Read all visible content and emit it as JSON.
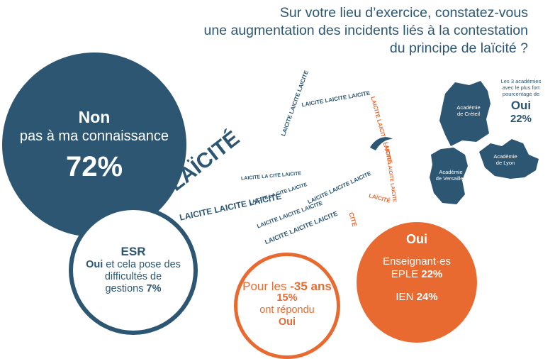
{
  "title": {
    "line1": "Sur votre lieu d’exercice, constatez-vous",
    "line2": "une augmentation des incidents liés à la contestation",
    "line3": "du principe de laïcité ?"
  },
  "chart_data": {
    "type": "bubble-infographic",
    "question": "Sur votre lieu d’exercice, constatez-vous une augmentation des incidents liés à la contestation du principe de laïcité ?",
    "non": {
      "head": "Non",
      "sub": "pas à ma connaissance",
      "value_label": "72%",
      "value": 72
    },
    "esr": {
      "head": "ESR",
      "oui": "Oui",
      "text1": "et cela pose des",
      "text2": "difficultés de",
      "text3": "gestions",
      "value_label": "7%",
      "value": 7
    },
    "jeunes": {
      "prefix": "Pour les",
      "group": "-35 ans",
      "value_label": "15%",
      "value": 15,
      "text": "ont répondu",
      "answer": "Oui"
    },
    "oui": {
      "head": "Oui",
      "enseignants_label": "Enseignant·es",
      "eple_label": "EPLE",
      "eple_value_label": "22%",
      "eple_value": 22,
      "ien_label": "IEN",
      "ien_value_label": "24%",
      "ien_value": 24
    },
    "map": {
      "info1": "Les 3 académies",
      "info2": "avec le plus fort",
      "info3": "pourcentage de",
      "oui": "Oui",
      "value_label": "22%",
      "value": 22,
      "academies": [
        {
          "name1": "Académie",
          "name2": "de Créteil"
        },
        {
          "name1": "Académie",
          "name2": "de Versailles"
        },
        {
          "name1": "Académie",
          "name2": "de Lyon"
        }
      ]
    }
  },
  "decor": {
    "laicite_big": "LAÏCITÉ",
    "laicite": "LAÏCITÉ",
    "laicite_repeat": "LAICITE LAICITE LAICITE",
    "laicite_la_cite": "LAICITE LA CITE LAICITE",
    "cite": "CITE",
    "colors": {
      "blue": "#2c5672",
      "orange": "#e96a31"
    }
  }
}
